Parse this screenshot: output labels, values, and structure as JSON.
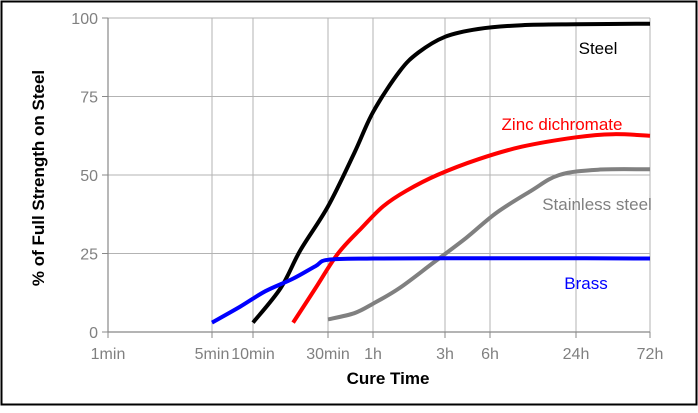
{
  "chart_data": {
    "type": "line",
    "title": "",
    "xlabel": "Cure Time",
    "ylabel": "% of Full Strength on Steel",
    "x_scale": "log",
    "x_unit": "minutes",
    "x_ticks": [
      {
        "label": "1min",
        "value": 1
      },
      {
        "label": "5min",
        "value": 5
      },
      {
        "label": "10min",
        "value": 10
      },
      {
        "label": "30min",
        "value": 30
      },
      {
        "label": "1h",
        "value": 60
      },
      {
        "label": "3h",
        "value": 180
      },
      {
        "label": "6h",
        "value": 360
      },
      {
        "label": "24h",
        "value": 1440
      },
      {
        "label": "72h",
        "value": 4320
      }
    ],
    "y_ticks": [
      0,
      25,
      50,
      75,
      100
    ],
    "ylim": [
      0,
      100
    ],
    "grid": true,
    "series": [
      {
        "name": "Steel",
        "color": "#000000",
        "points": [
          [
            10,
            3
          ],
          [
            15,
            14
          ],
          [
            20,
            26
          ],
          [
            30,
            40
          ],
          [
            45,
            57
          ],
          [
            60,
            70
          ],
          [
            90,
            83
          ],
          [
            120,
            89
          ],
          [
            180,
            94
          ],
          [
            300,
            96.5
          ],
          [
            600,
            97.7
          ],
          [
            1440,
            98
          ],
          [
            4320,
            98.2
          ]
        ]
      },
      {
        "name": "Zinc dichromate",
        "color": "#ff0000",
        "points": [
          [
            18,
            3
          ],
          [
            25,
            14
          ],
          [
            35,
            25
          ],
          [
            50,
            33
          ],
          [
            70,
            40
          ],
          [
            100,
            45
          ],
          [
            160,
            50
          ],
          [
            300,
            55
          ],
          [
            600,
            59
          ],
          [
            1440,
            62
          ],
          [
            2500,
            63
          ],
          [
            4320,
            62.5
          ]
        ]
      },
      {
        "name": "Stainless steel",
        "color": "#808080",
        "points": [
          [
            30,
            4
          ],
          [
            45,
            6
          ],
          [
            60,
            9
          ],
          [
            90,
            14
          ],
          [
            150,
            22
          ],
          [
            250,
            30
          ],
          [
            400,
            38
          ],
          [
            700,
            45
          ],
          [
            1100,
            50
          ],
          [
            2000,
            51.7
          ],
          [
            4320,
            51.8
          ]
        ]
      },
      {
        "name": "Brass",
        "color": "#0000ff",
        "points": [
          [
            5,
            3
          ],
          [
            8,
            8
          ],
          [
            12,
            13
          ],
          [
            18,
            17
          ],
          [
            25,
            21
          ],
          [
            30,
            23
          ],
          [
            60,
            23.4
          ],
          [
            180,
            23.5
          ],
          [
            1000,
            23.5
          ],
          [
            4320,
            23.4
          ]
        ]
      }
    ]
  }
}
